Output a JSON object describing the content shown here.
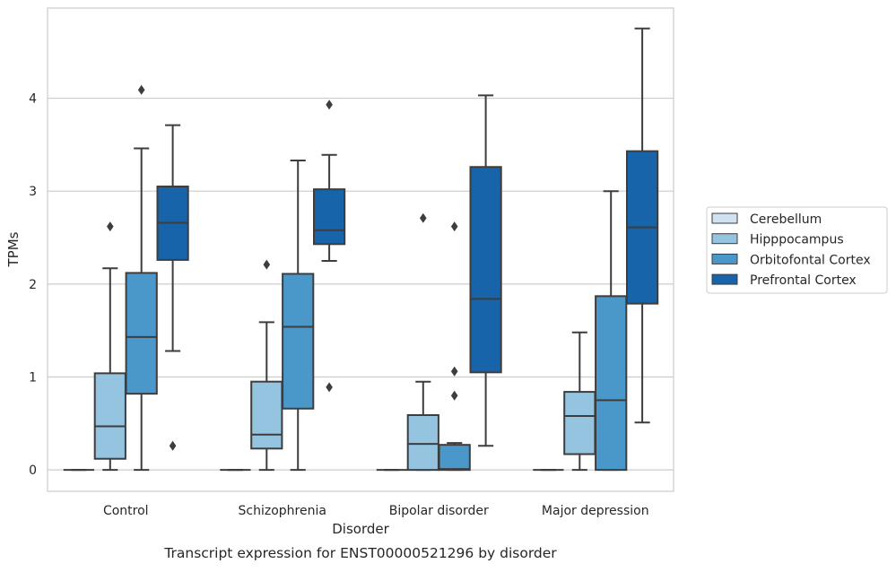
{
  "chart_data": {
    "type": "box",
    "title": "Transcript expression for ENST00000521296 by disorder",
    "xlabel": "Disorder",
    "ylabel": "TPMs",
    "categories": [
      "Control",
      "Schizophrenia",
      "Bipolar disorder",
      "Major depression"
    ],
    "ylim": [
      -0.23,
      4.97
    ],
    "yticks": [
      0,
      1,
      2,
      3,
      4
    ],
    "grid": "horizontal",
    "legend_position": "right",
    "series": [
      {
        "name": "Cerebellum",
        "color": "#d0e1f2",
        "boxes": [
          {
            "category": "Control",
            "whisker_low": 0,
            "q1": 0,
            "median": 0,
            "q3": 0,
            "whisker_high": 0,
            "outliers": []
          },
          {
            "category": "Schizophrenia",
            "whisker_low": 0,
            "q1": 0,
            "median": 0,
            "q3": 0,
            "whisker_high": 0,
            "outliers": []
          },
          {
            "category": "Bipolar disorder",
            "whisker_low": 0,
            "q1": 0,
            "median": 0,
            "q3": 0,
            "whisker_high": 0,
            "outliers": []
          },
          {
            "category": "Major depression",
            "whisker_low": 0,
            "q1": 0,
            "median": 0,
            "q3": 0,
            "whisker_high": 0,
            "outliers": []
          }
        ]
      },
      {
        "name": "Hipppocampus",
        "color": "#94c4df",
        "boxes": [
          {
            "category": "Control",
            "whisker_low": 0,
            "q1": 0.12,
            "median": 0.47,
            "q3": 1.04,
            "whisker_high": 2.17,
            "outliers": [
              2.62
            ]
          },
          {
            "category": "Schizophrenia",
            "whisker_low": 0,
            "q1": 0.23,
            "median": 0.38,
            "q3": 0.95,
            "whisker_high": 1.59,
            "outliers": [
              2.21
            ]
          },
          {
            "category": "Bipolar disorder",
            "whisker_low": 0,
            "q1": 0,
            "median": 0.28,
            "q3": 0.59,
            "whisker_high": 0.95,
            "outliers": [
              2.71
            ]
          },
          {
            "category": "Major depression",
            "whisker_low": 0,
            "q1": 0.17,
            "median": 0.58,
            "q3": 0.84,
            "whisker_high": 1.48,
            "outliers": []
          }
        ]
      },
      {
        "name": "Orbitofontal Cortex",
        "color": "#4a98c9",
        "boxes": [
          {
            "category": "Control",
            "whisker_low": 0,
            "q1": 0.82,
            "median": 1.43,
            "q3": 2.12,
            "whisker_high": 3.46,
            "outliers": [
              4.09
            ]
          },
          {
            "category": "Schizophrenia",
            "whisker_low": 0,
            "q1": 0.66,
            "median": 1.54,
            "q3": 2.11,
            "whisker_high": 3.33,
            "outliers": []
          },
          {
            "category": "Bipolar disorder",
            "whisker_low": 0,
            "q1": 0,
            "median": 0.01,
            "q3": 0.27,
            "whisker_high": 0.29,
            "outliers": [
              2.62,
              1.06,
              0.8
            ]
          },
          {
            "category": "Major depression",
            "whisker_low": 0,
            "q1": 0,
            "median": 0.75,
            "q3": 1.87,
            "whisker_high": 3.0,
            "outliers": []
          }
        ]
      },
      {
        "name": "Prefrontal Cortex",
        "color": "#1764ab",
        "boxes": [
          {
            "category": "Control",
            "whisker_low": 1.28,
            "q1": 2.26,
            "median": 2.66,
            "q3": 3.05,
            "whisker_high": 3.71,
            "outliers": [
              0.26
            ]
          },
          {
            "category": "Schizophrenia",
            "whisker_low": 2.25,
            "q1": 2.43,
            "median": 2.58,
            "q3": 3.02,
            "whisker_high": 3.39,
            "outliers": [
              3.93,
              0.89
            ]
          },
          {
            "category": "Bipolar disorder",
            "whisker_low": 0.26,
            "q1": 1.05,
            "median": 1.84,
            "q3": 3.26,
            "whisker_high": 4.03,
            "outliers": []
          },
          {
            "category": "Major depression",
            "whisker_low": 0.51,
            "q1": 1.79,
            "median": 2.61,
            "q3": 3.43,
            "whisker_high": 4.75,
            "outliers": []
          }
        ]
      }
    ]
  }
}
